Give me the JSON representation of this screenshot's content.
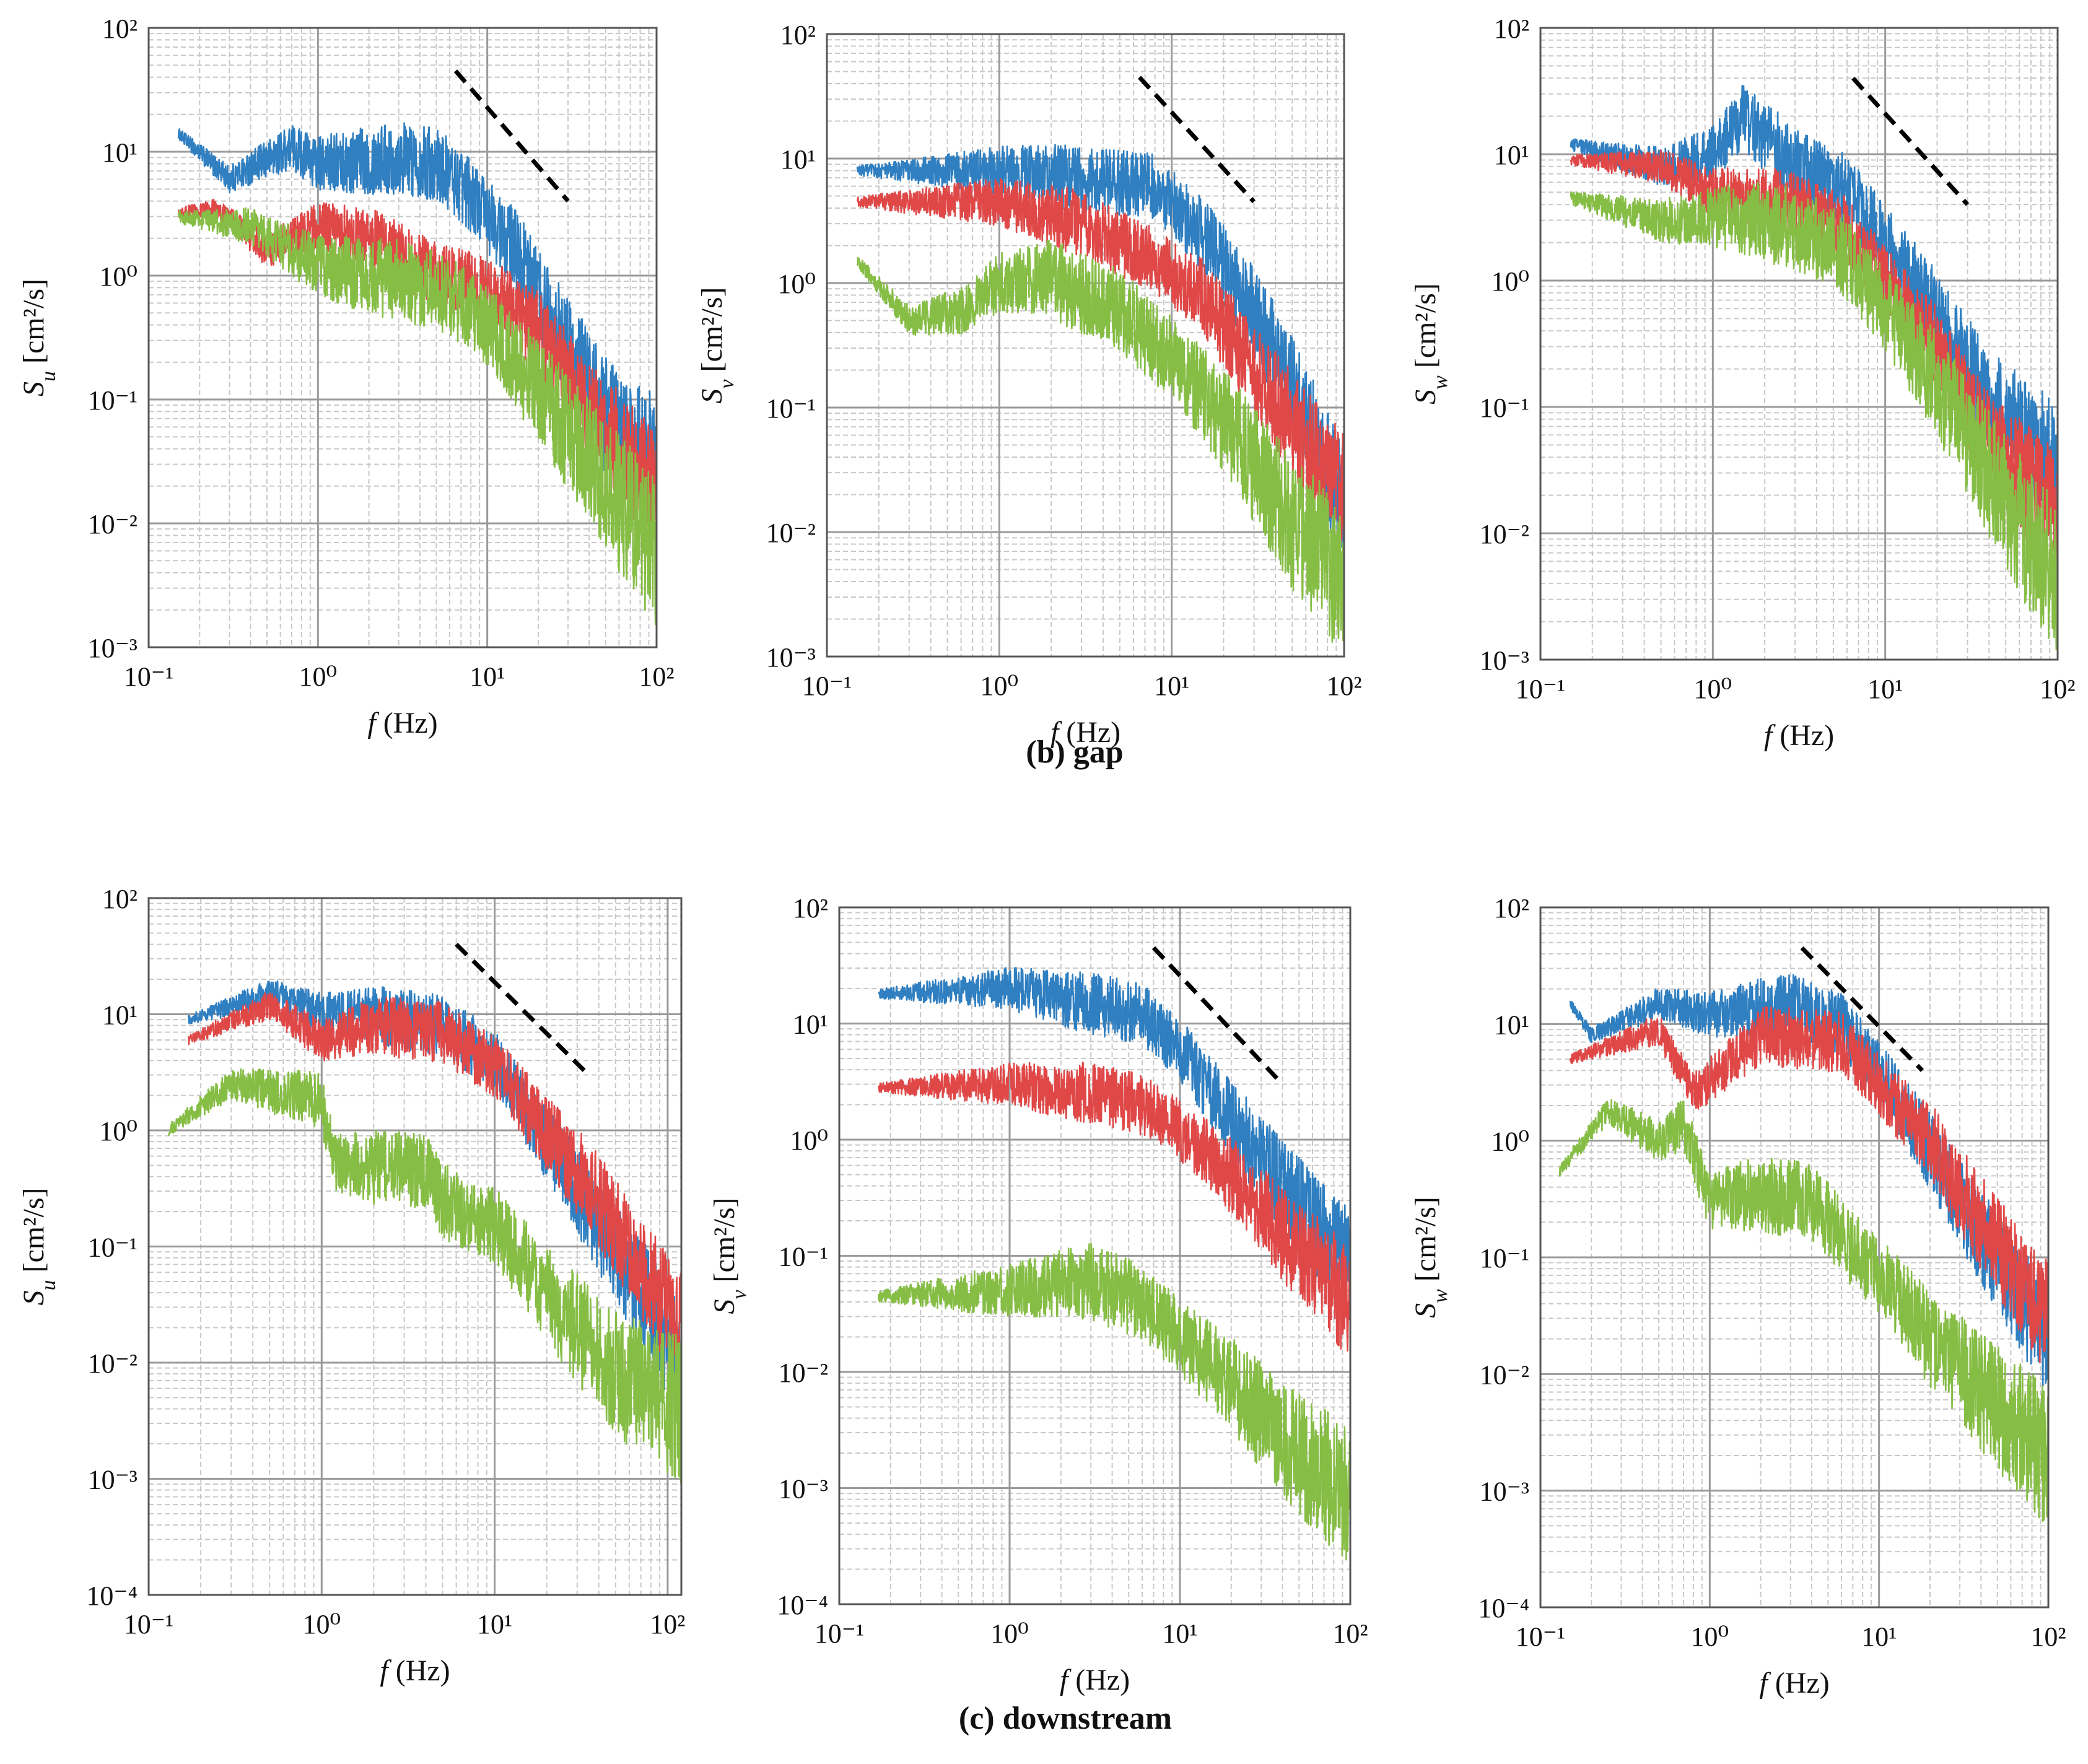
{
  "figure": {
    "captions": {
      "gap": "(b) gap",
      "downstream": "(c) downstream"
    },
    "colors": {
      "blue": "#2f7fc1",
      "red": "#e04848",
      "green": "#86bd45",
      "grid_major": "#9a9a9a",
      "grid_minor": "#c8c8c8"
    }
  },
  "chart_data": [
    {
      "id": "gap-u",
      "group": "gap",
      "type": "line",
      "xlabel_var": "f",
      "xlabel_unit": " (Hz)",
      "ylabel_sym": "S",
      "ylabel_sub": "u",
      "ylabel_unit": " [cm²/s]",
      "xlim": [
        0.1,
        100
      ],
      "ylim": [
        0.001,
        100
      ],
      "x_ticks": [
        "10⁻¹",
        "10⁰",
        "10¹",
        "10²"
      ],
      "y_ticks": [
        "10⁻³",
        "10⁻²",
        "10⁻¹",
        "10⁰",
        "10¹",
        "10²"
      ],
      "reference_line": {
        "x": [
          6.5,
          30
        ],
        "y": [
          45,
          4
        ],
        "style": "dashed",
        "color": "#000000"
      },
      "series": [
        {
          "name": "blue",
          "color": "#2f7fc1",
          "knots": [
            [
              0.15,
              14
            ],
            [
              0.3,
              6
            ],
            [
              0.7,
              11
            ],
            [
              1,
              8
            ],
            [
              3,
              9
            ],
            [
              5,
              8
            ],
            [
              8,
              4.5
            ],
            [
              15,
              1.5
            ],
            [
              30,
              0.25
            ],
            [
              60,
              0.05
            ],
            [
              100,
              0.03
            ]
          ],
          "noise": 0.18
        },
        {
          "name": "red",
          "color": "#e04848",
          "knots": [
            [
              0.15,
              3.2
            ],
            [
              0.25,
              3.5
            ],
            [
              0.5,
              1.6
            ],
            [
              1,
              2.5
            ],
            [
              2,
              2
            ],
            [
              5,
              1
            ],
            [
              10,
              0.8
            ],
            [
              20,
              0.35
            ],
            [
              40,
              0.08
            ],
            [
              100,
              0.02
            ]
          ],
          "noise": 0.16
        },
        {
          "name": "green",
          "color": "#86bd45",
          "knots": [
            [
              0.15,
              3
            ],
            [
              0.4,
              2.5
            ],
            [
              1,
              1.2
            ],
            [
              2,
              1
            ],
            [
              5,
              0.8
            ],
            [
              10,
              0.4
            ],
            [
              20,
              0.12
            ],
            [
              50,
              0.02
            ],
            [
              100,
              0.006
            ]
          ],
          "noise": 0.2
        }
      ]
    },
    {
      "id": "gap-v",
      "group": "gap",
      "type": "line",
      "xlabel_var": "f",
      "xlabel_unit": " (Hz)",
      "ylabel_sym": "S",
      "ylabel_sub": "v",
      "ylabel_unit": " [cm²/s]",
      "xlim": [
        0.1,
        100
      ],
      "ylim": [
        0.001,
        100
      ],
      "x_ticks": [
        "10⁻¹",
        "10⁰",
        "10¹",
        "10²"
      ],
      "y_ticks": [
        "10⁻³",
        "10⁻²",
        "10⁻¹",
        "10⁰",
        "10¹",
        "10²"
      ],
      "reference_line": {
        "x": [
          6.5,
          30
        ],
        "y": [
          45,
          4.5
        ],
        "style": "dashed",
        "color": "#000000"
      },
      "series": [
        {
          "name": "blue",
          "color": "#2f7fc1",
          "knots": [
            [
              0.15,
              8
            ],
            [
              1,
              8
            ],
            [
              3,
              7
            ],
            [
              8,
              6
            ],
            [
              15,
              2.5
            ],
            [
              30,
              0.6
            ],
            [
              60,
              0.08
            ],
            [
              100,
              0.015
            ]
          ],
          "noise": 0.16
        },
        {
          "name": "red",
          "color": "#e04848",
          "knots": [
            [
              0.15,
              4.5
            ],
            [
              1,
              4.5
            ],
            [
              3,
              3
            ],
            [
              8,
              1.5
            ],
            [
              15,
              0.8
            ],
            [
              30,
              0.2
            ],
            [
              60,
              0.05
            ],
            [
              100,
              0.02
            ]
          ],
          "noise": 0.16
        },
        {
          "name": "green",
          "color": "#86bd45",
          "knots": [
            [
              0.15,
              1.5
            ],
            [
              0.3,
              0.5
            ],
            [
              0.6,
              0.6
            ],
            [
              1,
              1
            ],
            [
              2,
              1.1
            ],
            [
              5,
              0.6
            ],
            [
              10,
              0.25
            ],
            [
              20,
              0.08
            ],
            [
              50,
              0.012
            ],
            [
              100,
              0.004
            ]
          ],
          "noise": 0.2
        }
      ]
    },
    {
      "id": "gap-w",
      "group": "gap",
      "type": "line",
      "xlabel_var": "f",
      "xlabel_unit": " (Hz)",
      "ylabel_sym": "S",
      "ylabel_sub": "w",
      "ylabel_unit": " [cm²/s]",
      "xlim": [
        0.1,
        100
      ],
      "ylim": [
        0.001,
        100
      ],
      "x_ticks": [
        "10⁻¹",
        "10⁰",
        "10¹",
        "10²"
      ],
      "y_ticks": [
        "10⁻³",
        "10⁻²",
        "10⁻¹",
        "10⁰",
        "10¹",
        "10²"
      ],
      "reference_line": {
        "x": [
          6.5,
          30
        ],
        "y": [
          40,
          4
        ],
        "style": "dashed",
        "color": "#000000"
      },
      "series": [
        {
          "name": "blue",
          "color": "#2f7fc1",
          "knots": [
            [
              0.15,
              12
            ],
            [
              0.5,
              8
            ],
            [
              1,
              10
            ],
            [
              1.5,
              20
            ],
            [
              3,
              8
            ],
            [
              6,
              5
            ],
            [
              10,
              2
            ],
            [
              20,
              0.5
            ],
            [
              40,
              0.1
            ],
            [
              100,
              0.03
            ]
          ],
          "noise": 0.18
        },
        {
          "name": "red",
          "color": "#e04848",
          "knots": [
            [
              0.15,
              9
            ],
            [
              0.5,
              8
            ],
            [
              1,
              5
            ],
            [
              3,
              4
            ],
            [
              6,
              2.5
            ],
            [
              10,
              1
            ],
            [
              20,
              0.3
            ],
            [
              40,
              0.05
            ],
            [
              100,
              0.015
            ]
          ],
          "noise": 0.16
        },
        {
          "name": "green",
          "color": "#86bd45",
          "knots": [
            [
              0.15,
              4.5
            ],
            [
              0.5,
              3
            ],
            [
              1,
              3.2
            ],
            [
              2,
              3
            ],
            [
              5,
              2
            ],
            [
              10,
              0.6
            ],
            [
              20,
              0.15
            ],
            [
              40,
              0.03
            ],
            [
              100,
              0.004
            ]
          ],
          "noise": 0.2
        }
      ]
    },
    {
      "id": "down-u",
      "group": "downstream",
      "type": "line",
      "xlabel_var": "f",
      "xlabel_unit": " (Hz)",
      "ylabel_sym": "S",
      "ylabel_sub": "u",
      "ylabel_unit": " [cm²/s]",
      "xlim": [
        0.1,
        120
      ],
      "ylim": [
        0.0001,
        100
      ],
      "x_ticks": [
        "10⁻¹",
        "10⁰",
        "10¹",
        "10²"
      ],
      "y_ticks": [
        "10⁻⁴",
        "10⁻³",
        "10⁻²",
        "10⁻¹",
        "10⁰",
        "10¹",
        "10²"
      ],
      "reference_line": {
        "x": [
          6,
          35
        ],
        "y": [
          40,
          3
        ],
        "style": "dashed",
        "color": "#000000"
      },
      "series": [
        {
          "name": "blue",
          "color": "#2f7fc1",
          "knots": [
            [
              0.17,
              9
            ],
            [
              0.5,
              15
            ],
            [
              1,
              10
            ],
            [
              2,
              10
            ],
            [
              5,
              8
            ],
            [
              10,
              4
            ],
            [
              20,
              0.8
            ],
            [
              40,
              0.15
            ],
            [
              80,
              0.03
            ],
            [
              120,
              0.01
            ]
          ],
          "noise": 0.16
        },
        {
          "name": "red",
          "color": "#e04848",
          "knots": [
            [
              0.17,
              6
            ],
            [
              0.5,
              12
            ],
            [
              1,
              6
            ],
            [
              2,
              8
            ],
            [
              5,
              7
            ],
            [
              10,
              3.5
            ],
            [
              20,
              1
            ],
            [
              40,
              0.25
            ],
            [
              80,
              0.05
            ],
            [
              120,
              0.02
            ]
          ],
          "noise": 0.16
        },
        {
          "name": "green",
          "color": "#86bd45",
          "knots": [
            [
              0.13,
              1
            ],
            [
              0.3,
              2.5
            ],
            [
              1,
              1.8
            ],
            [
              1.2,
              0.5
            ],
            [
              4,
              0.45
            ],
            [
              5,
              0.25
            ],
            [
              10,
              0.15
            ],
            [
              20,
              0.04
            ],
            [
              50,
              0.008
            ],
            [
              120,
              0.004
            ]
          ],
          "noise": 0.2
        }
      ]
    },
    {
      "id": "down-v",
      "group": "downstream",
      "type": "line",
      "xlabel_var": "f",
      "xlabel_unit": " (Hz)",
      "ylabel_sym": "S",
      "ylabel_sub": "v",
      "ylabel_unit": " [cm²/s]",
      "xlim": [
        0.1,
        100
      ],
      "ylim": [
        0.0001,
        100
      ],
      "x_ticks": [
        "10⁻¹",
        "10⁰",
        "10¹",
        "10²"
      ],
      "y_ticks": [
        "10⁻⁴",
        "10⁻³",
        "10⁻²",
        "10⁻¹",
        "10⁰",
        "10¹",
        "10²"
      ],
      "reference_line": {
        "x": [
          7,
          40
        ],
        "y": [
          45,
          3
        ],
        "style": "dashed",
        "color": "#000000"
      },
      "series": [
        {
          "name": "blue",
          "color": "#2f7fc1",
          "knots": [
            [
              0.17,
              18
            ],
            [
              1,
              20
            ],
            [
              3,
              15
            ],
            [
              6,
              12
            ],
            [
              10,
              6
            ],
            [
              20,
              1.5
            ],
            [
              40,
              0.4
            ],
            [
              100,
              0.08
            ]
          ],
          "noise": 0.16
        },
        {
          "name": "red",
          "color": "#e04848",
          "knots": [
            [
              0.17,
              2.8
            ],
            [
              1,
              3
            ],
            [
              3,
              2.5
            ],
            [
              6,
              2
            ],
            [
              10,
              1.2
            ],
            [
              20,
              0.5
            ],
            [
              40,
              0.15
            ],
            [
              100,
              0.04
            ]
          ],
          "noise": 0.16
        },
        {
          "name": "green",
          "color": "#86bd45",
          "knots": [
            [
              0.17,
              0.045
            ],
            [
              1,
              0.05
            ],
            [
              3,
              0.06
            ],
            [
              6,
              0.04
            ],
            [
              10,
              0.02
            ],
            [
              20,
              0.008
            ],
            [
              50,
              0.002
            ],
            [
              100,
              0.0008
            ]
          ],
          "noise": 0.2
        }
      ]
    },
    {
      "id": "down-w",
      "group": "downstream",
      "type": "line",
      "xlabel_var": "f",
      "xlabel_unit": " (Hz)",
      "ylabel_sym": "S",
      "ylabel_sub": "w",
      "ylabel_unit": " [cm²/s]",
      "xlim": [
        0.1,
        100
      ],
      "ylim": [
        0.0001,
        100
      ],
      "x_ticks": [
        "10⁻¹",
        "10⁰",
        "10¹",
        "10²"
      ],
      "y_ticks": [
        "10⁻⁴",
        "10⁻³",
        "10⁻²",
        "10⁻¹",
        "10⁰",
        "10¹",
        "10²"
      ],
      "reference_line": {
        "x": [
          3.5,
          18
        ],
        "y": [
          45,
          4
        ],
        "style": "dashed",
        "color": "#000000"
      },
      "series": [
        {
          "name": "blue",
          "color": "#2f7fc1",
          "knots": [
            [
              0.15,
              15
            ],
            [
              0.2,
              8
            ],
            [
              0.5,
              15
            ],
            [
              1,
              12
            ],
            [
              3,
              15
            ],
            [
              6,
              10
            ],
            [
              10,
              4
            ],
            [
              20,
              0.8
            ],
            [
              40,
              0.15
            ],
            [
              100,
              0.02
            ]
          ],
          "noise": 0.16
        },
        {
          "name": "red",
          "color": "#e04848",
          "knots": [
            [
              0.15,
              5
            ],
            [
              0.5,
              9
            ],
            [
              0.8,
              2.5
            ],
            [
              2,
              8
            ],
            [
              6,
              7
            ],
            [
              10,
              3
            ],
            [
              20,
              1
            ],
            [
              40,
              0.2
            ],
            [
              100,
              0.03
            ]
          ],
          "noise": 0.16
        },
        {
          "name": "green",
          "color": "#86bd45",
          "knots": [
            [
              0.13,
              0.55
            ],
            [
              0.25,
              1.8
            ],
            [
              0.5,
              1
            ],
            [
              0.7,
              1.4
            ],
            [
              1,
              0.3
            ],
            [
              2,
              0.35
            ],
            [
              4,
              0.3
            ],
            [
              6,
              0.15
            ],
            [
              10,
              0.07
            ],
            [
              20,
              0.02
            ],
            [
              50,
              0.005
            ],
            [
              100,
              0.002
            ]
          ],
          "noise": 0.2
        }
      ]
    }
  ]
}
